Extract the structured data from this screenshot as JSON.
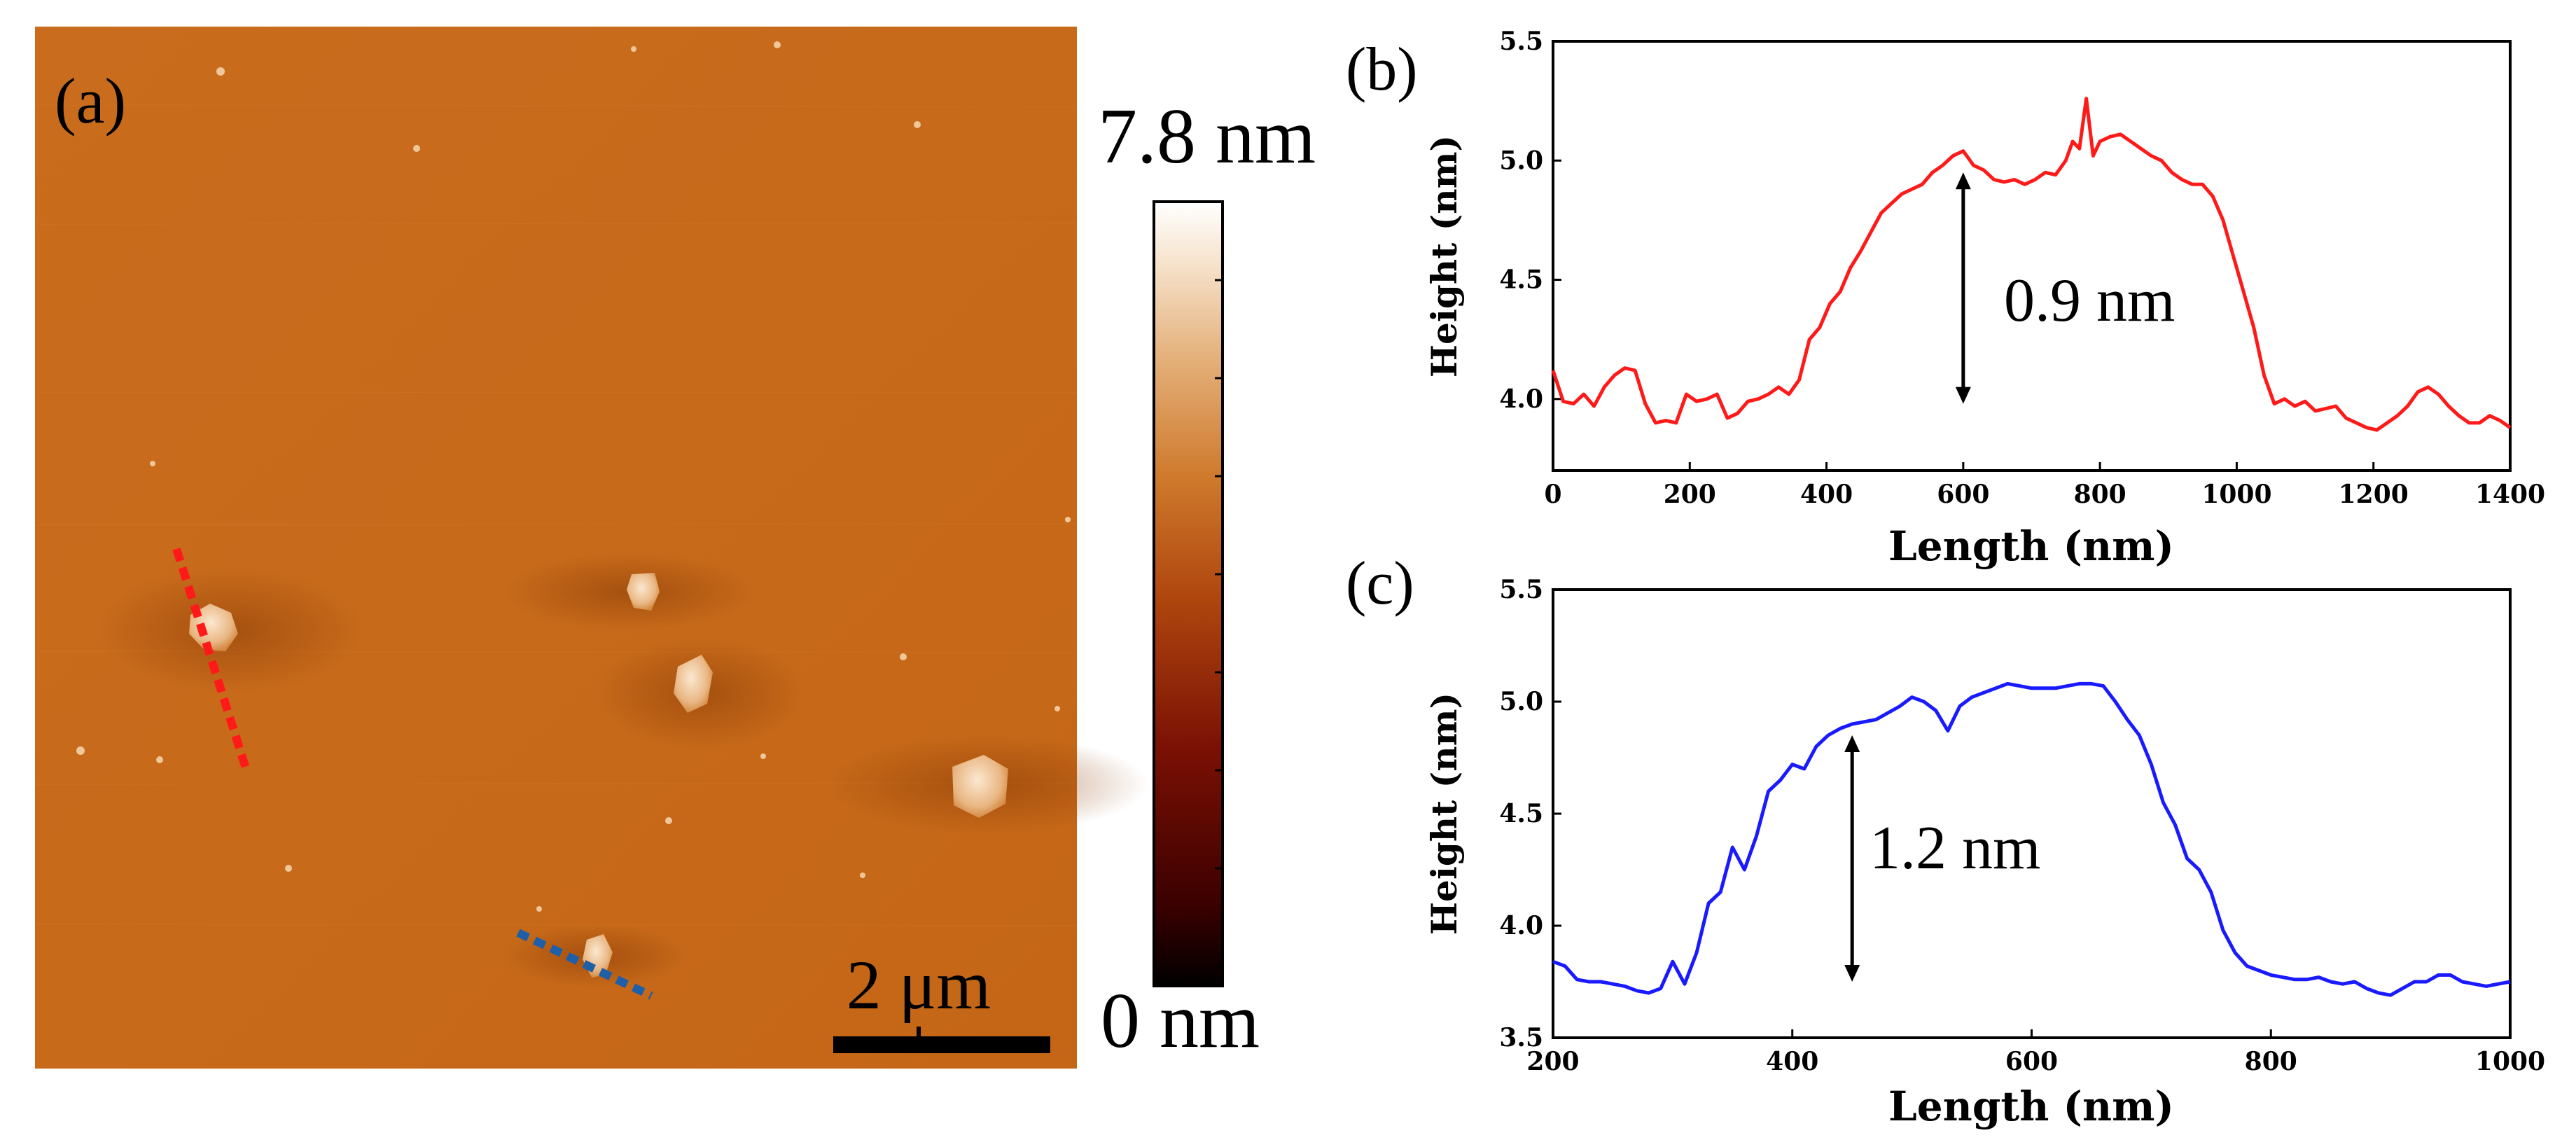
{
  "panel_a": {
    "label": "(a)",
    "colorbar": {
      "max_label": "7.8 nm",
      "min_label": "0 nm",
      "range_nm": [
        0,
        7.8
      ]
    },
    "scalebar_label": "2 μm",
    "colors": {
      "substrate": "#c76a1a",
      "red_line": "#ff1a1a",
      "blue_line": "#1f5fa8"
    }
  },
  "chart_data": [
    {
      "panel": "(b)",
      "type": "line",
      "title": "",
      "xlabel": "Length (nm)",
      "ylabel": "Height (nm)",
      "xlim": [
        0,
        1400
      ],
      "ylim": [
        3.7,
        5.5
      ],
      "xticks": [
        "0",
        "200",
        "400",
        "600",
        "800",
        "1000",
        "1200",
        "1400"
      ],
      "yticks": [
        "4.0",
        "4.5",
        "5.0",
        "5.5"
      ],
      "annotation": "0.9 nm",
      "annotation_arrow": {
        "x": 600,
        "y_from": 3.98,
        "y_to": 4.95
      },
      "series": [
        {
          "name": "red profile",
          "color": "#ff1a1a",
          "x": [
            0,
            15,
            30,
            45,
            60,
            75,
            90,
            105,
            120,
            135,
            150,
            165,
            180,
            195,
            210,
            225,
            240,
            255,
            270,
            285,
            300,
            315,
            330,
            345,
            360,
            375,
            390,
            405,
            420,
            435,
            450,
            465,
            480,
            495,
            510,
            525,
            540,
            555,
            570,
            585,
            600,
            615,
            630,
            645,
            660,
            675,
            690,
            705,
            720,
            735,
            750,
            760,
            770,
            780,
            790,
            800,
            815,
            830,
            845,
            860,
            875,
            890,
            905,
            920,
            935,
            950,
            965,
            980,
            995,
            1010,
            1025,
            1040,
            1055,
            1070,
            1085,
            1100,
            1115,
            1130,
            1145,
            1160,
            1175,
            1190,
            1205,
            1220,
            1235,
            1250,
            1265,
            1280,
            1295,
            1310,
            1325,
            1340,
            1355,
            1370,
            1385,
            1400
          ],
          "y": [
            4.12,
            3.99,
            3.98,
            4.02,
            3.97,
            4.05,
            4.1,
            4.13,
            4.12,
            3.98,
            3.9,
            3.91,
            3.9,
            4.02,
            3.99,
            4.0,
            4.02,
            3.92,
            3.94,
            3.99,
            4.0,
            4.02,
            4.05,
            4.02,
            4.08,
            4.25,
            4.3,
            4.4,
            4.45,
            4.55,
            4.62,
            4.7,
            4.78,
            4.82,
            4.86,
            4.88,
            4.9,
            4.95,
            4.98,
            5.02,
            5.04,
            4.98,
            4.96,
            4.92,
            4.91,
            4.92,
            4.9,
            4.92,
            4.95,
            4.94,
            5.0,
            5.08,
            5.05,
            5.26,
            5.02,
            5.08,
            5.1,
            5.11,
            5.08,
            5.05,
            5.02,
            5.0,
            4.95,
            4.92,
            4.9,
            4.9,
            4.85,
            4.75,
            4.6,
            4.45,
            4.3,
            4.1,
            3.98,
            4.0,
            3.97,
            3.99,
            3.95,
            3.96,
            3.97,
            3.92,
            3.9,
            3.88,
            3.87,
            3.9,
            3.93,
            3.97,
            4.03,
            4.05,
            4.02,
            3.97,
            3.93,
            3.9,
            3.9,
            3.93,
            3.91,
            3.88
          ]
        }
      ]
    },
    {
      "panel": "(c)",
      "type": "line",
      "title": "",
      "xlabel": "Length (nm)",
      "ylabel": "Height (nm)",
      "xlim": [
        200,
        1000
      ],
      "ylim": [
        3.5,
        5.5
      ],
      "xticks": [
        "200",
        "400",
        "600",
        "800",
        "1000"
      ],
      "yticks": [
        "3.5",
        "4.0",
        "4.5",
        "5.0",
        "5.5"
      ],
      "annotation": "1.2 nm",
      "annotation_arrow": {
        "x": 450,
        "y_from": 3.75,
        "y_to": 4.85
      },
      "series": [
        {
          "name": "blue profile",
          "color": "#1a1aff",
          "x": [
            200,
            210,
            220,
            230,
            240,
            250,
            260,
            270,
            280,
            290,
            300,
            310,
            320,
            330,
            340,
            350,
            360,
            370,
            380,
            390,
            400,
            410,
            420,
            430,
            440,
            450,
            460,
            470,
            480,
            490,
            500,
            510,
            520,
            530,
            540,
            550,
            560,
            570,
            580,
            590,
            600,
            610,
            620,
            630,
            640,
            650,
            660,
            670,
            680,
            690,
            700,
            710,
            720,
            730,
            740,
            750,
            760,
            770,
            780,
            790,
            800,
            810,
            820,
            830,
            840,
            850,
            860,
            870,
            880,
            890,
            900,
            910,
            920,
            930,
            940,
            950,
            960,
            970,
            980,
            990,
            1000
          ],
          "y": [
            3.84,
            3.82,
            3.76,
            3.75,
            3.75,
            3.74,
            3.73,
            3.71,
            3.7,
            3.72,
            3.84,
            3.74,
            3.88,
            4.1,
            4.15,
            4.35,
            4.25,
            4.4,
            4.6,
            4.65,
            4.72,
            4.7,
            4.8,
            4.85,
            4.88,
            4.9,
            4.91,
            4.92,
            4.95,
            4.98,
            5.02,
            5.0,
            4.96,
            4.87,
            4.98,
            5.02,
            5.04,
            5.06,
            5.08,
            5.07,
            5.06,
            5.06,
            5.06,
            5.07,
            5.08,
            5.08,
            5.07,
            5.0,
            4.92,
            4.85,
            4.72,
            4.55,
            4.45,
            4.3,
            4.25,
            4.15,
            3.98,
            3.88,
            3.82,
            3.8,
            3.78,
            3.77,
            3.76,
            3.76,
            3.77,
            3.75,
            3.74,
            3.75,
            3.72,
            3.7,
            3.69,
            3.72,
            3.75,
            3.75,
            3.78,
            3.78,
            3.75,
            3.74,
            3.73,
            3.74,
            3.75
          ]
        }
      ]
    }
  ]
}
